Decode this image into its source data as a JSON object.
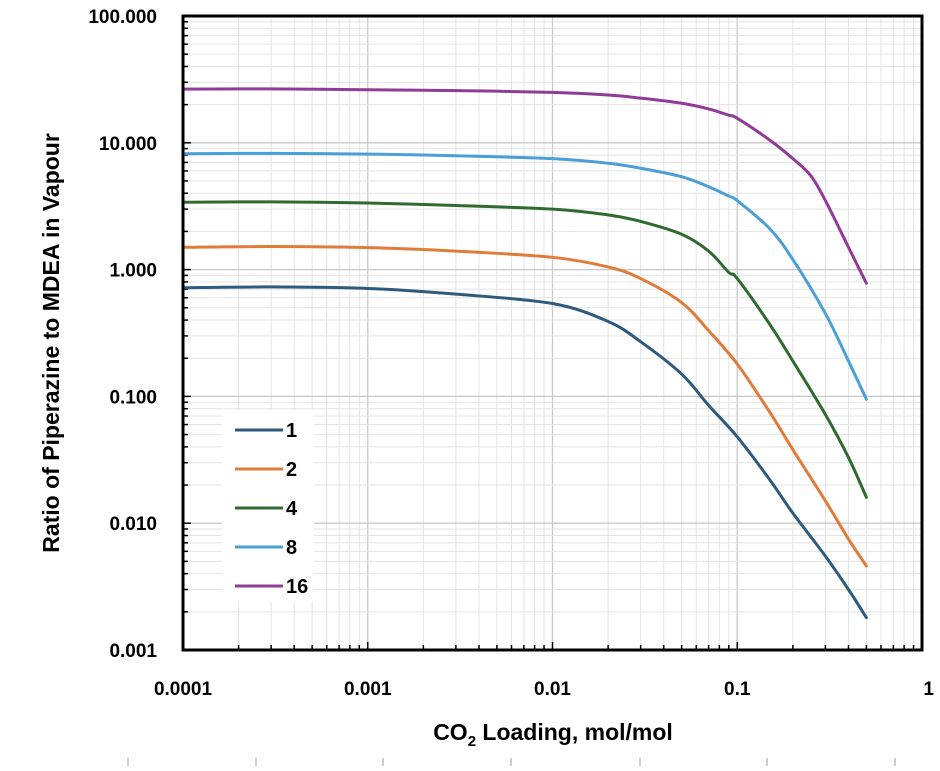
{
  "chart_data": {
    "type": "line",
    "title": "",
    "xlabel": {
      "prefix": "CO",
      "subscript": "2",
      "suffix": " Loading, mol/mol"
    },
    "ylabel": "Ratio of Piperazine to MDEA in Vapour",
    "x_scale": "log",
    "y_scale": "log",
    "xlim": [
      0.0001,
      1
    ],
    "ylim": [
      0.001,
      100
    ],
    "x_ticks": [
      {
        "value": 0.0001,
        "label": "0.0001"
      },
      {
        "value": 0.001,
        "label": "0.001"
      },
      {
        "value": 0.01,
        "label": "0.01"
      },
      {
        "value": 0.1,
        "label": "0.1"
      },
      {
        "value": 1,
        "label": "1"
      }
    ],
    "y_ticks": [
      {
        "value": 0.001,
        "label": "0.001"
      },
      {
        "value": 0.01,
        "label": "0.010"
      },
      {
        "value": 0.1,
        "label": "0.100"
      },
      {
        "value": 1,
        "label": "1.000"
      },
      {
        "value": 10,
        "label": "10.000"
      },
      {
        "value": 100,
        "label": "100.000"
      }
    ],
    "grid": true,
    "legend_position": "lower-left",
    "series": [
      {
        "name": "1",
        "color": "#2e5a7e",
        "points": [
          [
            0.0001,
            0.72
          ],
          [
            0.0003,
            0.73
          ],
          [
            0.001,
            0.71
          ],
          [
            0.003,
            0.64
          ],
          [
            0.01,
            0.54
          ],
          [
            0.02,
            0.39
          ],
          [
            0.03,
            0.27
          ],
          [
            0.05,
            0.15
          ],
          [
            0.07,
            0.085
          ],
          [
            0.1,
            0.048
          ],
          [
            0.15,
            0.022
          ],
          [
            0.2,
            0.012
          ],
          [
            0.3,
            0.0055
          ],
          [
            0.4,
            0.003
          ],
          [
            0.5,
            0.0018
          ]
        ]
      },
      {
        "name": "2",
        "color": "#e07b3a",
        "points": [
          [
            0.0001,
            1.5
          ],
          [
            0.0003,
            1.52
          ],
          [
            0.001,
            1.49
          ],
          [
            0.003,
            1.4
          ],
          [
            0.01,
            1.25
          ],
          [
            0.02,
            1.05
          ],
          [
            0.03,
            0.85
          ],
          [
            0.05,
            0.55
          ],
          [
            0.07,
            0.33
          ],
          [
            0.1,
            0.18
          ],
          [
            0.15,
            0.075
          ],
          [
            0.2,
            0.038
          ],
          [
            0.3,
            0.015
          ],
          [
            0.4,
            0.0075
          ],
          [
            0.5,
            0.0046
          ]
        ]
      },
      {
        "name": "4",
        "color": "#2f6b2f",
        "points": [
          [
            0.0001,
            3.4
          ],
          [
            0.0003,
            3.42
          ],
          [
            0.001,
            3.35
          ],
          [
            0.003,
            3.2
          ],
          [
            0.01,
            3.0
          ],
          [
            0.02,
            2.7
          ],
          [
            0.03,
            2.4
          ],
          [
            0.05,
            1.9
          ],
          [
            0.07,
            1.4
          ],
          [
            0.09,
            0.95
          ],
          [
            0.1,
            0.85
          ],
          [
            0.15,
            0.37
          ],
          [
            0.2,
            0.19
          ],
          [
            0.3,
            0.072
          ],
          [
            0.4,
            0.033
          ],
          [
            0.5,
            0.016
          ]
        ]
      },
      {
        "name": "8",
        "color": "#4a9fd8",
        "points": [
          [
            0.0001,
            8.2
          ],
          [
            0.0003,
            8.25
          ],
          [
            0.001,
            8.15
          ],
          [
            0.003,
            7.9
          ],
          [
            0.01,
            7.5
          ],
          [
            0.02,
            6.9
          ],
          [
            0.03,
            6.3
          ],
          [
            0.05,
            5.4
          ],
          [
            0.07,
            4.5
          ],
          [
            0.09,
            3.8
          ],
          [
            0.1,
            3.5
          ],
          [
            0.15,
            2.1
          ],
          [
            0.2,
            1.2
          ],
          [
            0.3,
            0.45
          ],
          [
            0.4,
            0.19
          ],
          [
            0.5,
            0.095
          ]
        ]
      },
      {
        "name": "16",
        "color": "#8e3c96",
        "points": [
          [
            0.0001,
            26.5
          ],
          [
            0.0003,
            26.6
          ],
          [
            0.001,
            26.2
          ],
          [
            0.003,
            25.8
          ],
          [
            0.01,
            25.0
          ],
          [
            0.02,
            23.8
          ],
          [
            0.03,
            22.5
          ],
          [
            0.05,
            20.5
          ],
          [
            0.07,
            18.5
          ],
          [
            0.09,
            16.5
          ],
          [
            0.1,
            15.6
          ],
          [
            0.15,
            10.5
          ],
          [
            0.2,
            7.5
          ],
          [
            0.25,
            5.5
          ],
          [
            0.3,
            3.5
          ],
          [
            0.4,
            1.5
          ],
          [
            0.5,
            0.78
          ]
        ]
      }
    ]
  }
}
